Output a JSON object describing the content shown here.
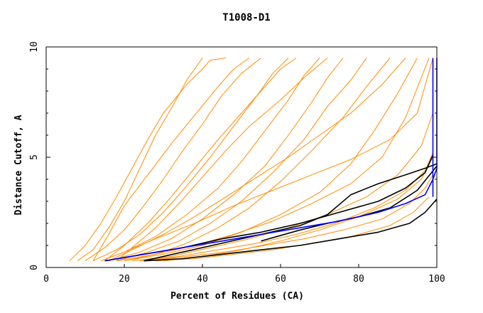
{
  "chart_data": {
    "type": "line",
    "title": "T1008-D1",
    "xlabel": "Percent of Residues (CA)",
    "ylabel": "Distance Cutoff, A",
    "xlim": [
      0,
      100
    ],
    "ylim": [
      0,
      10
    ],
    "x_ticks": [
      0,
      20,
      40,
      60,
      80,
      100
    ],
    "y_ticks": [
      0,
      5,
      10
    ],
    "grid": false,
    "colors": {
      "background": "#ffffff",
      "axis": "#000000",
      "orange": "#ff8c00",
      "black": "#000000",
      "blue": "#0000ff"
    },
    "series": [
      {
        "color": "orange",
        "x": [
          6,
          10,
          14,
          18,
          22,
          26,
          30,
          36,
          40,
          42,
          46
        ],
        "y": [
          0.3,
          1.0,
          2.0,
          3.2,
          4.5,
          5.8,
          7.0,
          8.3,
          9.0,
          9.4,
          9.5
        ]
      },
      {
        "color": "orange",
        "x": [
          8,
          12,
          16,
          20,
          24,
          28,
          32,
          36,
          40
        ],
        "y": [
          0.3,
          0.8,
          1.8,
          3.0,
          4.5,
          6.0,
          7.2,
          8.5,
          9.5
        ]
      },
      {
        "color": "orange",
        "x": [
          10,
          15,
          20,
          25,
          30,
          35,
          40,
          45,
          50,
          55
        ],
        "y": [
          0.3,
          0.9,
          1.7,
          2.8,
          4.0,
          5.3,
          6.5,
          7.8,
          8.8,
          9.5
        ]
      },
      {
        "color": "orange",
        "x": [
          12,
          18,
          24,
          30,
          36,
          42,
          48,
          54,
          58,
          62
        ],
        "y": [
          0.3,
          0.8,
          1.5,
          2.5,
          3.7,
          5.0,
          6.4,
          7.8,
          8.8,
          9.5
        ]
      },
      {
        "color": "orange",
        "x": [
          14,
          20,
          28,
          36,
          44,
          50,
          56,
          62,
          66,
          70
        ],
        "y": [
          0.3,
          0.7,
          1.4,
          2.4,
          3.6,
          4.8,
          6.2,
          7.6,
          8.7,
          9.5
        ]
      },
      {
        "color": "orange",
        "x": [
          16,
          24,
          32,
          40,
          48,
          56,
          62,
          68,
          72,
          76
        ],
        "y": [
          0.3,
          0.7,
          1.3,
          2.2,
          3.3,
          4.6,
          6.0,
          7.5,
          8.6,
          9.5
        ]
      },
      {
        "color": "orange",
        "x": [
          18,
          26,
          34,
          42,
          50,
          58,
          66,
          72,
          78,
          82
        ],
        "y": [
          0.3,
          0.7,
          1.2,
          2.0,
          3.0,
          4.3,
          5.8,
          7.3,
          8.5,
          9.5
        ]
      },
      {
        "color": "orange",
        "x": [
          20,
          28,
          36,
          44,
          52,
          60,
          68,
          76,
          82,
          88
        ],
        "y": [
          0.3,
          0.6,
          1.1,
          1.8,
          2.7,
          3.9,
          5.3,
          6.8,
          8.2,
          9.5
        ]
      },
      {
        "color": "orange",
        "x": [
          20,
          30,
          40,
          50,
          60,
          70,
          78,
          84,
          90,
          95
        ],
        "y": [
          0.3,
          0.6,
          1.0,
          1.6,
          2.4,
          3.4,
          4.7,
          6.2,
          7.9,
          9.5
        ]
      },
      {
        "color": "orange",
        "x": [
          18,
          28,
          38,
          48,
          58,
          68,
          78,
          86,
          92,
          98
        ],
        "y": [
          0.3,
          0.6,
          1.0,
          1.5,
          2.1,
          2.9,
          3.8,
          5.0,
          6.8,
          9.5
        ]
      },
      {
        "color": "orange",
        "x": [
          22,
          32,
          42,
          52,
          62,
          72,
          82,
          90,
          96,
          99
        ],
        "y": [
          0.3,
          0.5,
          0.9,
          1.3,
          1.8,
          2.4,
          3.2,
          4.2,
          5.5,
          7.0
        ]
      },
      {
        "color": "orange",
        "x": [
          24,
          34,
          44,
          54,
          64,
          74,
          84,
          92,
          97,
          99
        ],
        "y": [
          0.3,
          0.5,
          0.8,
          1.1,
          1.5,
          2.0,
          2.7,
          3.5,
          4.4,
          5.2
        ]
      },
      {
        "color": "orange",
        "x": [
          26,
          36,
          46,
          56,
          66,
          76,
          86,
          93,
          97,
          99
        ],
        "y": [
          0.3,
          0.5,
          0.7,
          1.0,
          1.3,
          1.7,
          2.2,
          2.9,
          3.6,
          4.2
        ]
      },
      {
        "color": "orange",
        "x": [
          28,
          38,
          48,
          58,
          68,
          78,
          88,
          94,
          98
        ],
        "y": [
          0.3,
          0.4,
          0.6,
          0.8,
          1.1,
          1.4,
          1.9,
          2.5,
          3.2
        ]
      },
      {
        "color": "orange",
        "x": [
          12,
          16,
          20,
          26,
          32,
          38,
          44,
          48,
          52
        ],
        "y": [
          0.3,
          1.5,
          2.8,
          4.2,
          5.6,
          6.9,
          8.2,
          9.0,
          9.5
        ]
      },
      {
        "color": "orange",
        "x": [
          15,
          20,
          26,
          32,
          38,
          44,
          50,
          56,
          60,
          64
        ],
        "y": [
          0.3,
          1.0,
          2.0,
          3.2,
          4.5,
          5.8,
          7.0,
          8.2,
          9.0,
          9.5
        ]
      },
      {
        "color": "orange",
        "x": [
          18,
          22,
          28,
          34,
          40,
          46,
          52,
          60,
          66,
          72
        ],
        "y": [
          0.3,
          0.9,
          1.8,
          2.9,
          4.1,
          5.3,
          6.4,
          7.6,
          8.6,
          9.5
        ]
      },
      {
        "color": "orange",
        "x": [
          16,
          22,
          30,
          38,
          46,
          54,
          62,
          70,
          78,
          86,
          92
        ],
        "y": [
          0.3,
          0.8,
          1.5,
          2.3,
          3.2,
          4.1,
          5.0,
          6.0,
          7.0,
          8.3,
          9.5
        ]
      },
      {
        "color": "orange",
        "x": [
          14,
          20,
          28,
          38,
          48,
          58,
          68,
          78,
          88,
          95,
          99
        ],
        "y": [
          0.3,
          0.7,
          1.3,
          2.0,
          2.8,
          3.5,
          4.2,
          4.9,
          5.8,
          7.0,
          9.5
        ]
      },
      {
        "color": "orange",
        "x": [
          30,
          40,
          50,
          60,
          70,
          80,
          90,
          96,
          99
        ],
        "y": [
          0.3,
          0.5,
          0.8,
          1.2,
          1.7,
          2.3,
          3.1,
          4.0,
          5.0
        ]
      },
      {
        "color": "black",
        "x": [
          15,
          25,
          35,
          45,
          55,
          65,
          75,
          85,
          92,
          97,
          99
        ],
        "y": [
          0.3,
          0.6,
          0.9,
          1.3,
          1.6,
          2.0,
          2.5,
          3.0,
          3.6,
          4.3,
          5.1
        ]
      },
      {
        "color": "black",
        "x": [
          25,
          35,
          45,
          55,
          65,
          72,
          78,
          85,
          92,
          97,
          100
        ],
        "y": [
          0.3,
          0.7,
          1.1,
          1.5,
          1.9,
          2.4,
          3.3,
          3.8,
          4.2,
          4.5,
          4.7
        ]
      },
      {
        "color": "black",
        "x": [
          25,
          35,
          45,
          55,
          65,
          75,
          85,
          93,
          97,
          100
        ],
        "y": [
          0.3,
          0.4,
          0.6,
          0.8,
          1.0,
          1.3,
          1.6,
          2.0,
          2.5,
          3.1
        ]
      },
      {
        "color": "black",
        "x": [
          55,
          65,
          72,
          80,
          88,
          95,
          100
        ],
        "y": [
          1.2,
          1.7,
          2.0,
          2.3,
          2.7,
          3.5,
          4.6
        ]
      },
      {
        "color": "blue",
        "x": [
          15,
          25,
          35,
          45,
          55,
          65,
          75,
          85,
          92,
          97,
          99,
          99,
          99
        ],
        "y": [
          0.3,
          0.6,
          0.9,
          1.2,
          1.5,
          1.8,
          2.1,
          2.5,
          2.9,
          3.3,
          4.0,
          6.0,
          9.5
        ]
      },
      {
        "color": "blue",
        "x": [
          99,
          99,
          100,
          100
        ],
        "y": [
          3.2,
          4.0,
          4.5,
          9.5
        ]
      }
    ]
  }
}
